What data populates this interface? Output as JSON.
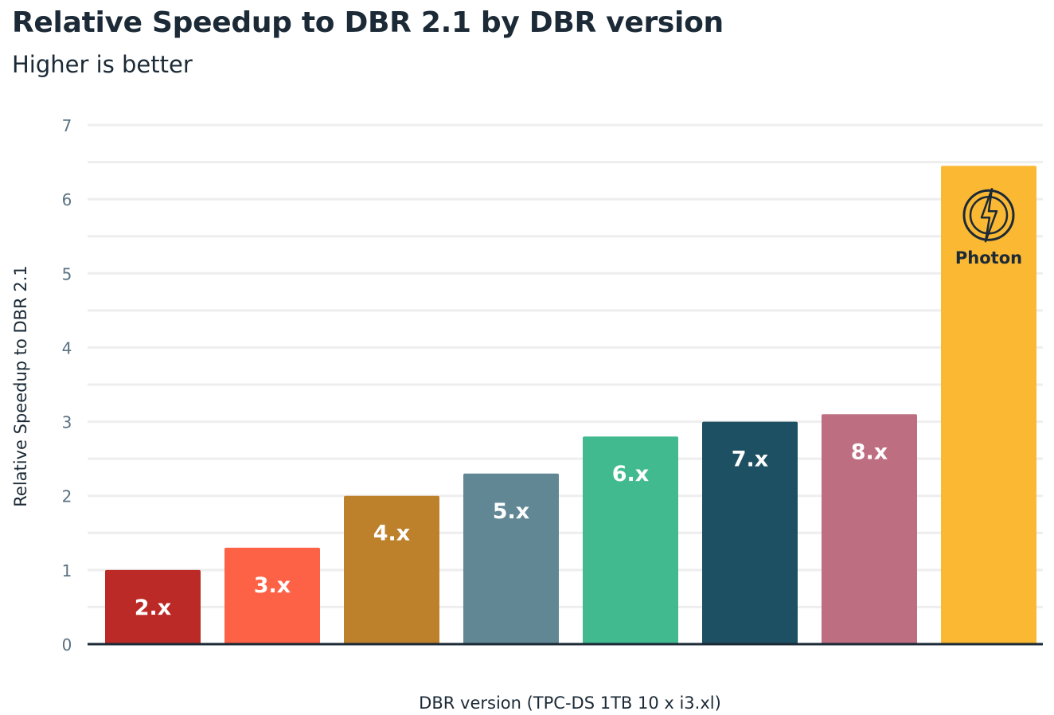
{
  "chart_data": {
    "type": "bar",
    "title": "Relative Speedup to DBR 2.1 by DBR version",
    "subtitle": "Higher is better",
    "xlabel": "DBR version (TPC-DS 1TB 10 x i3.xl)",
    "ylabel": "Relative Speedup to DBR 2.1",
    "ylim": [
      0,
      7
    ],
    "yticks": [
      "0",
      "1",
      "2",
      "3",
      "4",
      "5",
      "6",
      "7"
    ],
    "grid": true,
    "categories": [
      "2.x",
      "3.x",
      "4.x",
      "5.x",
      "6.x",
      "7.x",
      "8.x",
      "Photon"
    ],
    "values": [
      1.0,
      1.3,
      2.0,
      2.3,
      2.8,
      3.0,
      3.1,
      6.45
    ],
    "colors": [
      "#bb2a26",
      "#fd6146",
      "#bd802b",
      "#618794",
      "#41ba8f",
      "#1c5062",
      "#bd6e80",
      "#fbb833"
    ],
    "photon_icon": "lightning-circle-icon"
  }
}
